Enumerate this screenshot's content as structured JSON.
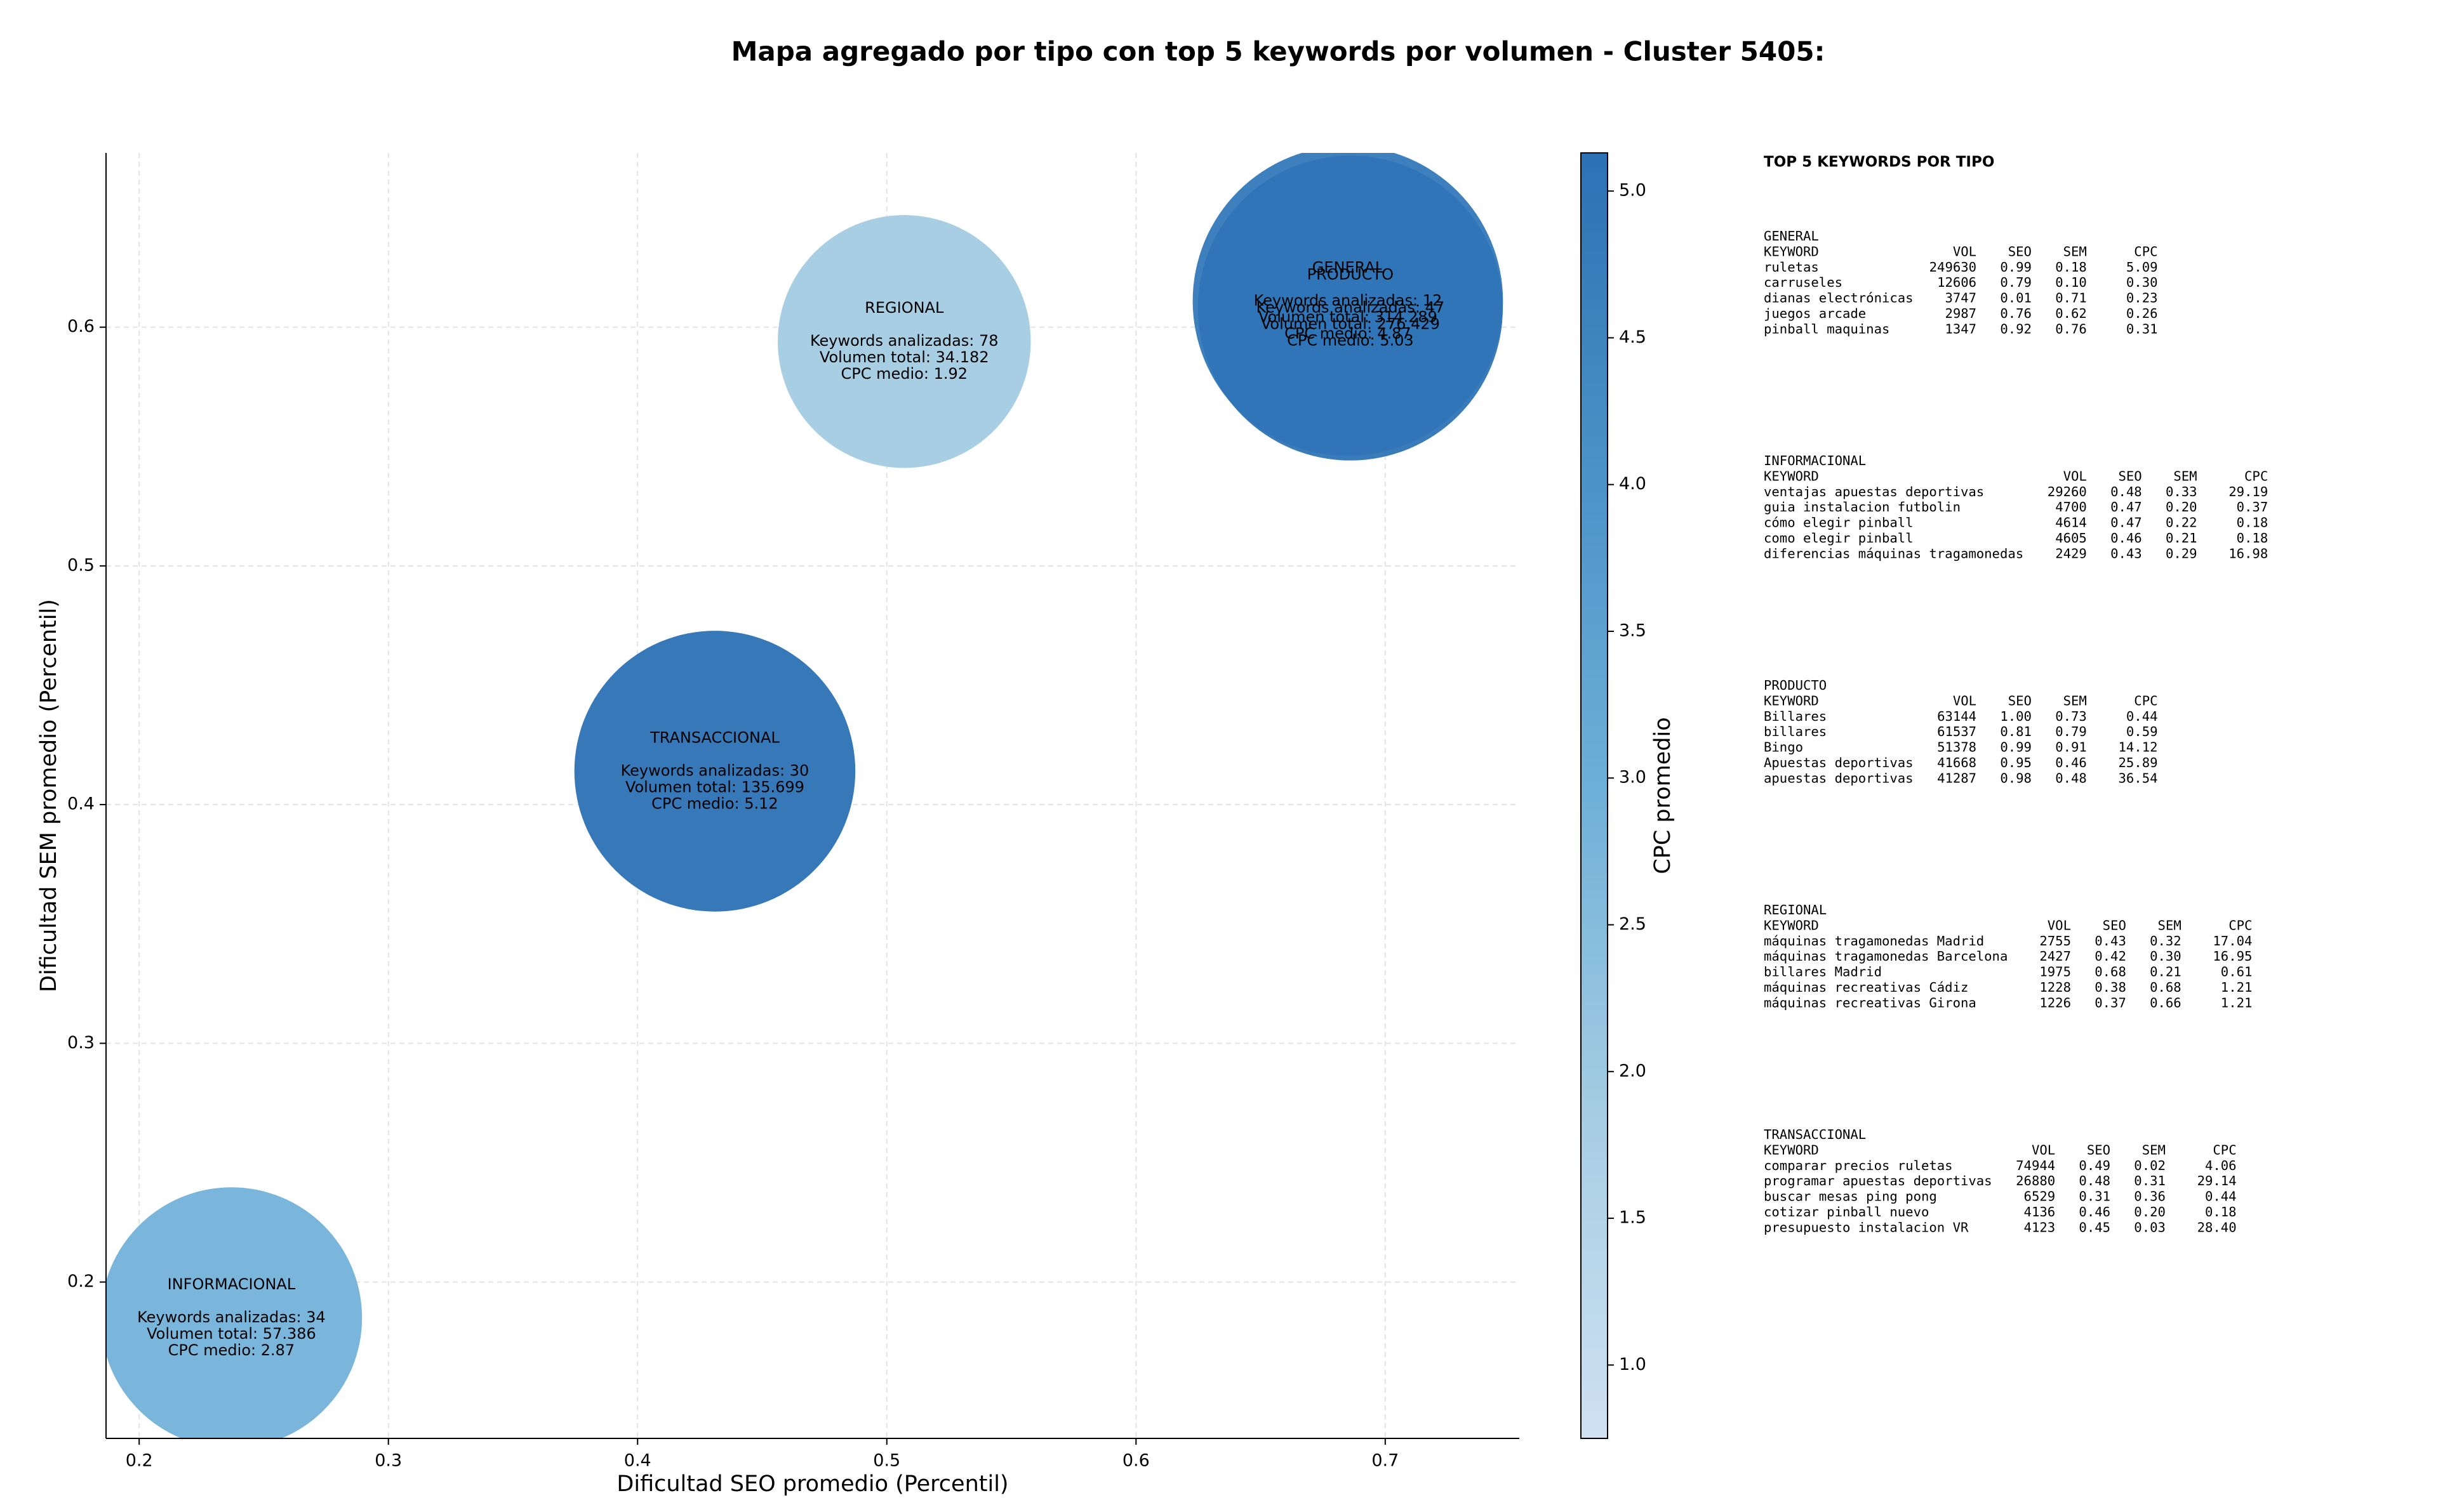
{
  "chart_data": {
    "type": "scatter",
    "title": "Mapa agregado por tipo con top 5 keywords por volumen - Cluster 5405:",
    "x_label": "Dificultad SEO promedio (Percentil)",
    "y_label": "Dificultad SEM promedio (Percentil)",
    "colorbar_label": "CPC promedio",
    "categories": [
      "GENERAL",
      "PRODUCTO",
      "REGIONAL",
      "TRANSACCIONAL",
      "INFORMACIONAL"
    ],
    "x": [
      0.685,
      0.686,
      0.507,
      0.431,
      0.237
    ],
    "y": [
      0.611,
      0.608,
      0.594,
      0.414,
      0.185
    ],
    "keywords": [
      12,
      47,
      78,
      30,
      34
    ],
    "volumes": [
      314289,
      276429,
      34182,
      135699,
      57386
    ],
    "volume_labels": [
      "314.289",
      "276.429",
      "34.182",
      "135.699",
      "57.386"
    ],
    "cpc": [
      4.87,
      5.03,
      1.92,
      5.12,
      2.87
    ],
    "bubble_texts": {
      "keywords": "Keywords analizadas:",
      "volume": "Volumen total:",
      "cpc": "CPC medio:"
    },
    "xlim": [
      0.1867,
      0.7538
    ],
    "ylim": [
      0.1345,
      0.673
    ],
    "xticks": [
      0.2,
      0.3,
      0.4,
      0.5,
      0.6,
      0.7
    ],
    "yticks": [
      0.2,
      0.3,
      0.4,
      0.5,
      0.6
    ],
    "clim": [
      0.75,
      5.13
    ],
    "cticks": [
      {
        "value": 1,
        "label": "1.0"
      },
      1.5,
      {
        "value": 2,
        "label": "2.0"
      },
      2.5,
      {
        "value": 3,
        "label": "3.0"
      },
      3.5,
      {
        "value": 4,
        "label": "4.0"
      },
      4.5,
      {
        "value": 5,
        "label": "5.0"
      }
    ],
    "colormap": [
      "#cfe1f2",
      "#a6cde3",
      "#6fb0d8",
      "#4a93c7",
      "#2c71b4"
    ],
    "grid": true,
    "panel": {
      "title": "TOP 5 KEYWORDS POR TIPO",
      "sections": [
        {
          "name": "GENERAL",
          "header": [
            "KEYWORD",
            "VOL",
            "SEO",
            "SEM",
            "CPC"
          ],
          "rows": [
            [
              "ruletas",
              "249630",
              "0.99",
              "0.18",
              "5.09"
            ],
            [
              "carruseles",
              "12606",
              "0.79",
              "0.10",
              "0.30"
            ],
            [
              "dianas electrónicas",
              "3747",
              "0.01",
              "0.71",
              "0.23"
            ],
            [
              "juegos arcade",
              "2987",
              "0.76",
              "0.62",
              "0.26"
            ],
            [
              "pinball maquinas",
              "1347",
              "0.92",
              "0.76",
              "0.31"
            ]
          ]
        },
        {
          "name": "INFORMACIONAL",
          "header": [
            "KEYWORD",
            "VOL",
            "SEO",
            "SEM",
            "CPC"
          ],
          "rows": [
            [
              "ventajas apuestas deportivas",
              "29260",
              "0.48",
              "0.33",
              "29.19"
            ],
            [
              "guia instalacion futbolin",
              "4700",
              "0.47",
              "0.20",
              "0.37"
            ],
            [
              "cómo elegir pinball",
              "4614",
              "0.47",
              "0.22",
              "0.18"
            ],
            [
              "como elegir pinball",
              "4605",
              "0.46",
              "0.21",
              "0.18"
            ],
            [
              "diferencias máquinas tragamonedas",
              "2429",
              "0.43",
              "0.29",
              "16.98"
            ]
          ]
        },
        {
          "name": "PRODUCTO",
          "header": [
            "KEYWORD",
            "VOL",
            "SEO",
            "SEM",
            "CPC"
          ],
          "rows": [
            [
              "Billares",
              "63144",
              "1.00",
              "0.73",
              "0.44"
            ],
            [
              "billares",
              "61537",
              "0.81",
              "0.79",
              "0.59"
            ],
            [
              "Bingo",
              "51378",
              "0.99",
              "0.91",
              "14.12"
            ],
            [
              "Apuestas deportivas",
              "41668",
              "0.95",
              "0.46",
              "25.89"
            ],
            [
              "apuestas deportivas",
              "41287",
              "0.98",
              "0.48",
              "36.54"
            ]
          ]
        },
        {
          "name": "REGIONAL",
          "header": [
            "KEYWORD",
            "VOL",
            "SEO",
            "SEM",
            "CPC"
          ],
          "rows": [
            [
              "máquinas tragamonedas Madrid",
              "2755",
              "0.43",
              "0.32",
              "17.04"
            ],
            [
              "máquinas tragamonedas Barcelona",
              "2427",
              "0.42",
              "0.30",
              "16.95"
            ],
            [
              "billares Madrid",
              "1975",
              "0.68",
              "0.21",
              "0.61"
            ],
            [
              "máquinas recreativas Cádiz",
              "1228",
              "0.38",
              "0.68",
              "1.21"
            ],
            [
              "máquinas recreativas Girona",
              "1226",
              "0.37",
              "0.66",
              "1.21"
            ]
          ]
        },
        {
          "name": "TRANSACCIONAL",
          "header": [
            "KEYWORD",
            "VOL",
            "SEO",
            "SEM",
            "CPC"
          ],
          "rows": [
            [
              "comparar precios ruletas",
              "74944",
              "0.49",
              "0.02",
              "4.06"
            ],
            [
              "programar apuestas deportivas",
              "26880",
              "0.48",
              "0.31",
              "29.14"
            ],
            [
              "buscar mesas ping pong",
              "6529",
              "0.31",
              "0.36",
              "0.44"
            ],
            [
              "cotizar pinball nuevo",
              "4136",
              "0.46",
              "0.20",
              "0.18"
            ],
            [
              "presupuesto instalacion VR",
              "4123",
              "0.45",
              "0.03",
              "28.40"
            ]
          ]
        }
      ]
    }
  }
}
